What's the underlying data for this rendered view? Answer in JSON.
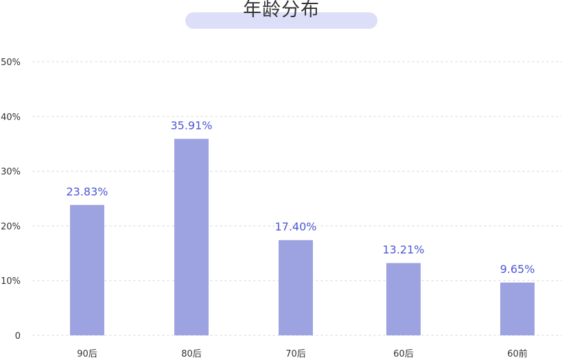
{
  "chart_data": {
    "type": "bar",
    "title": "年龄分布",
    "xlabel": "",
    "ylabel": "",
    "categories": [
      "90后",
      "80后",
      "70后",
      "60后",
      "60前"
    ],
    "values": [
      23.83,
      35.91,
      17.4,
      13.21,
      9.65
    ],
    "value_labels": [
      "23.83%",
      "35.91%",
      "17.40%",
      "13.21%",
      "9.65%"
    ],
    "ylim": [
      0,
      50
    ],
    "yticks": [
      0,
      10,
      20,
      30,
      40,
      50
    ],
    "ytick_labels": [
      "0",
      "10%",
      "20%",
      "30%",
      "40%",
      "50%"
    ],
    "grid": true,
    "legend": "none"
  },
  "colors": {
    "bar": "#9da2e0",
    "value_label": "#4c56d3",
    "title_pill": "#dcdff7",
    "grid": "#d9d9d9"
  }
}
